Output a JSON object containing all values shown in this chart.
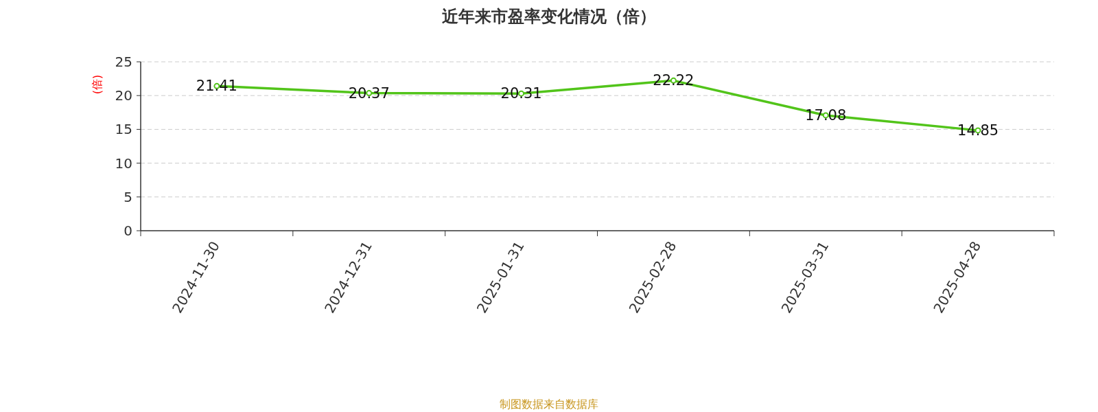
{
  "chart_data": {
    "type": "line",
    "title": "近年来市盈率变化情况（倍）",
    "ylabel": "(倍)",
    "categories": [
      "2024-11-30",
      "2024-12-31",
      "2025-01-31",
      "2025-02-28",
      "2025-03-31",
      "2025-04-28"
    ],
    "series": [
      {
        "color": "#52c41a",
        "values": [
          21.41,
          20.37,
          20.31,
          22.22,
          17.08,
          14.85
        ]
      }
    ],
    "ylim": [
      0,
      25
    ],
    "yticks": [
      0,
      5,
      10,
      15,
      20,
      25
    ],
    "grid": "y",
    "data_labels": true,
    "marker": "circle",
    "annotations": [
      "制图数据来自数据库"
    ]
  }
}
